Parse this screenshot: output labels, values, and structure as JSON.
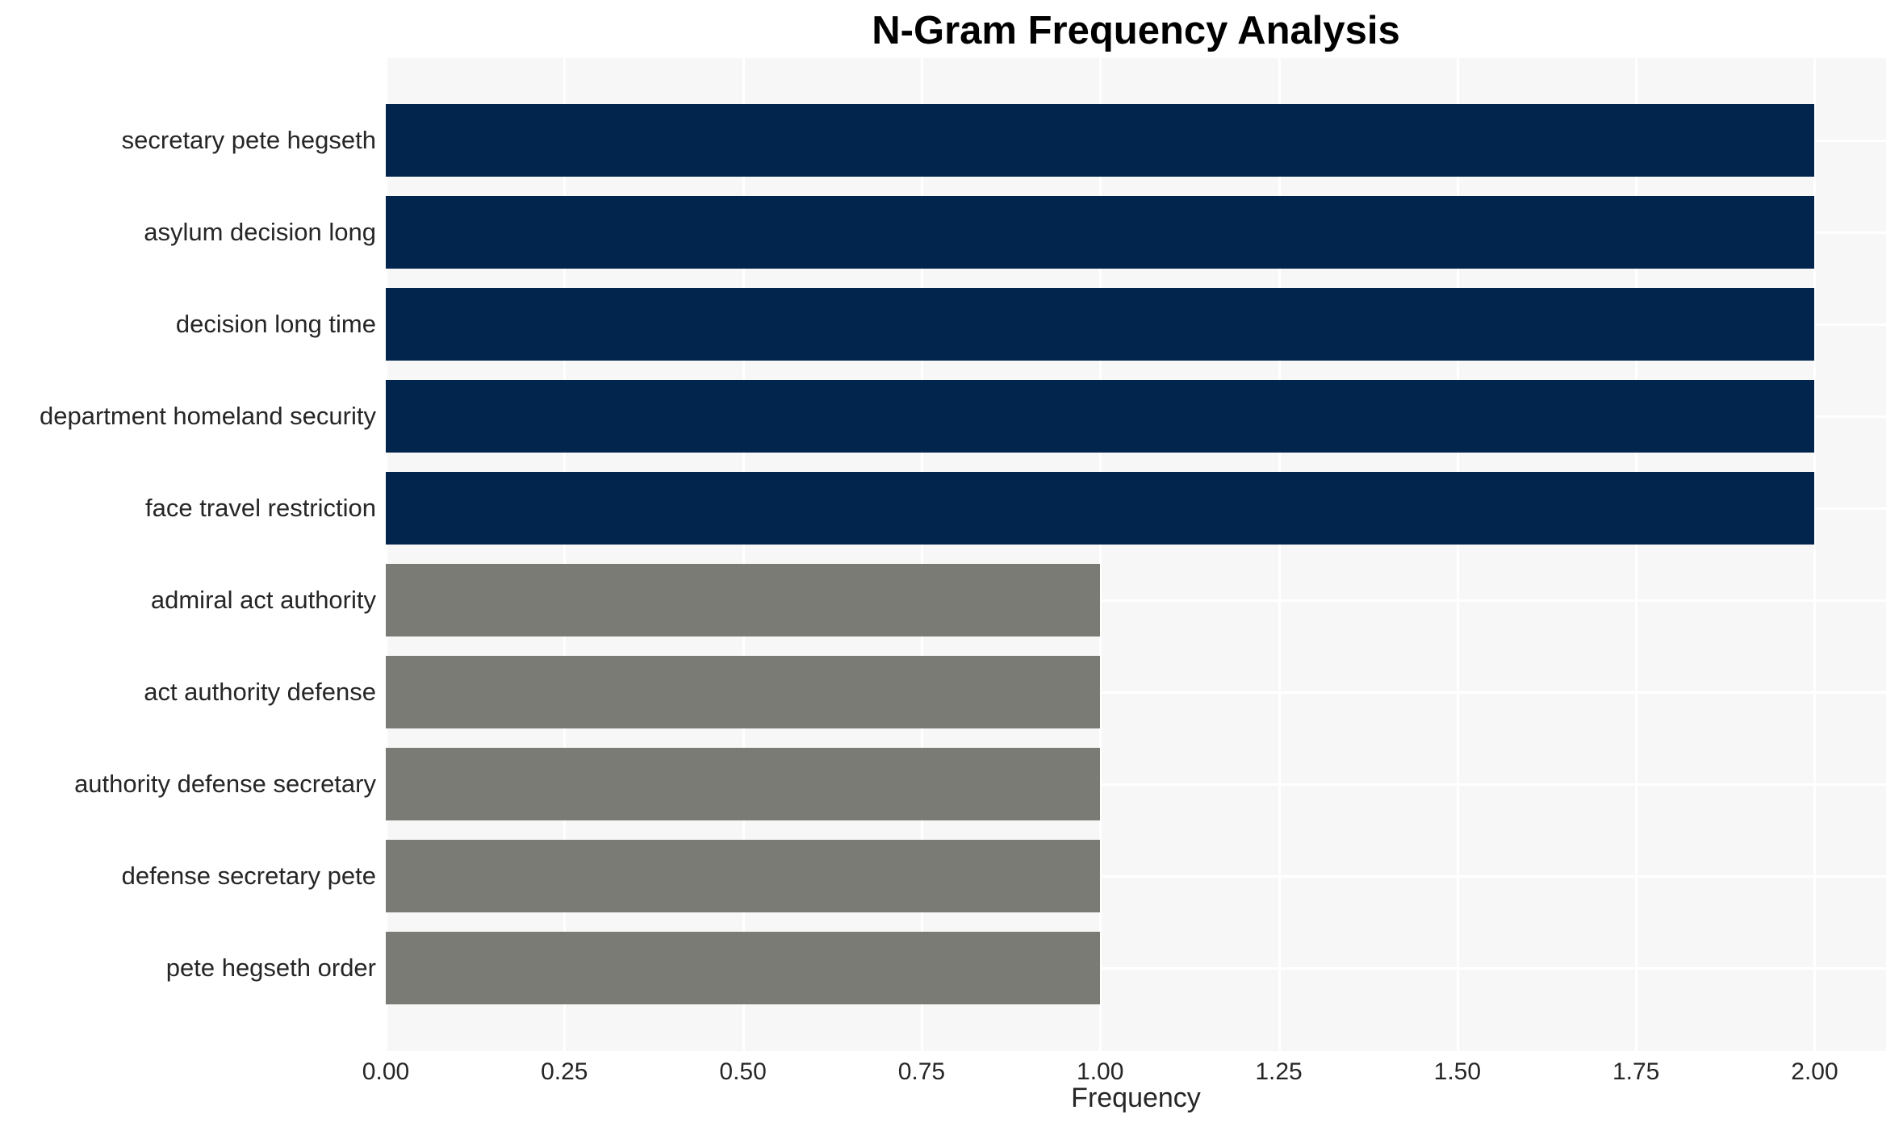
{
  "title": "N-Gram Frequency Analysis",
  "chart_data": {
    "type": "bar",
    "orientation": "horizontal",
    "title": "N-Gram Frequency Analysis",
    "xlabel": "Frequency",
    "ylabel": "",
    "categories": [
      "secretary pete hegseth",
      "asylum decision long",
      "decision long time",
      "department homeland security",
      "face travel restriction",
      "admiral act authority",
      "act authority defense",
      "authority defense secretary",
      "defense secretary pete",
      "pete hegseth order"
    ],
    "values": [
      2,
      2,
      2,
      2,
      2,
      1,
      1,
      1,
      1,
      1
    ],
    "bar_colors": [
      "#02254D",
      "#02254D",
      "#02254D",
      "#02254D",
      "#02254D",
      "#7B7B76",
      "#7B7B76",
      "#7B7B76",
      "#7B7B76",
      "#7B7B76"
    ],
    "xticks": [
      "0.00",
      "0.25",
      "0.50",
      "0.75",
      "1.00",
      "1.25",
      "1.50",
      "1.75",
      "2.00"
    ],
    "xtick_values": [
      0,
      0.25,
      0.5,
      0.75,
      1.0,
      1.25,
      1.5,
      1.75,
      2.0
    ],
    "xlim": [
      0,
      2.1
    ],
    "grid": true,
    "legend": false,
    "colors": {
      "plot_background": "#F7F7F7",
      "gridline": "#FFFFFF",
      "tick_text": "#262626",
      "title_text": "#000000"
    }
  }
}
